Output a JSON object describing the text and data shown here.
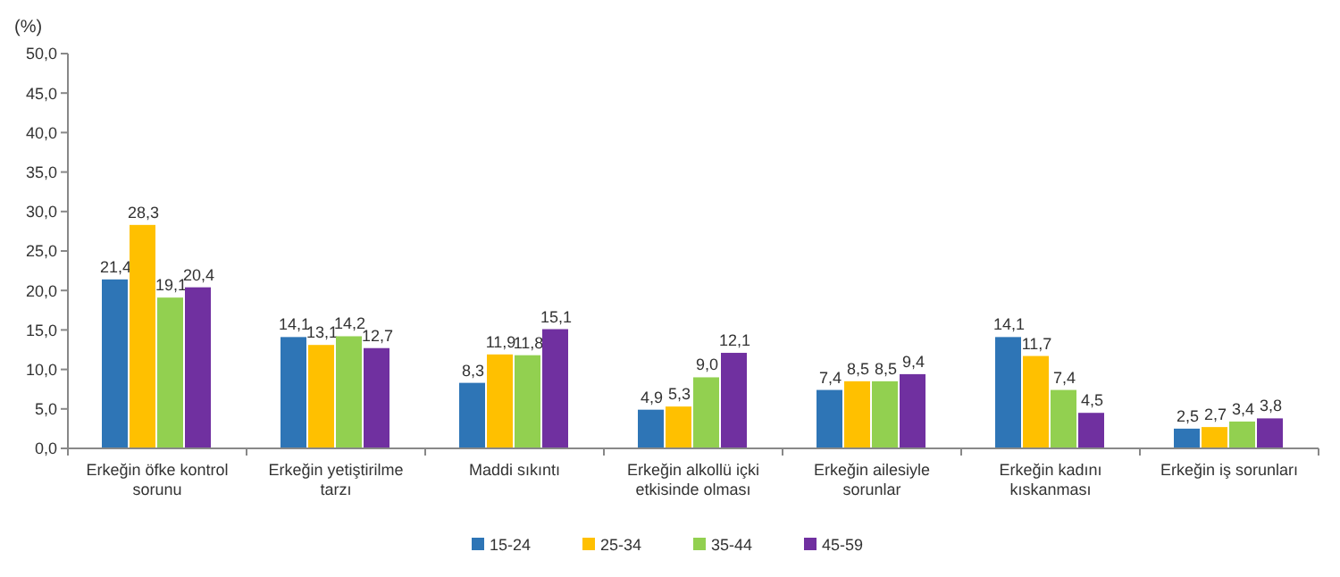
{
  "chart_data": {
    "type": "bar",
    "ylabel": "(%)",
    "categories": [
      "Erkeğin öfke kontrol sorunu",
      "Erkeğin yetiştirilme tarzı",
      "Maddi sıkıntı",
      "Erkeğin alkollü içki etkisinde olması",
      "Erkeğin ailesiyle sorunlar",
      "Erkeğin kadını kıskanması",
      "Erkeğin iş sorunları"
    ],
    "series": [
      {
        "name": "15-24",
        "color": "#2e75b6",
        "values": [
          21.4,
          14.1,
          8.3,
          4.9,
          7.4,
          14.1,
          2.5
        ],
        "value_labels": [
          "21,4",
          "14,1",
          "8,3",
          "4,9",
          "7,4",
          "14,1",
          "2,5"
        ]
      },
      {
        "name": "25-34",
        "color": "#ffc000",
        "values": [
          28.3,
          13.1,
          11.9,
          5.3,
          8.5,
          11.7,
          2.7
        ],
        "value_labels": [
          "28,3",
          "13,1",
          "11,9",
          "5,3",
          "8,5",
          "11,7",
          "2,7"
        ]
      },
      {
        "name": "35-44",
        "color": "#92d050",
        "values": [
          19.1,
          14.2,
          11.8,
          9.0,
          8.5,
          7.4,
          3.4
        ],
        "value_labels": [
          "19,1",
          "14,2",
          "11,8",
          "9,0",
          "8,5",
          "7,4",
          "3,4"
        ]
      },
      {
        "name": "45-59",
        "color": "#7030a0",
        "values": [
          20.4,
          12.7,
          15.1,
          12.1,
          9.4,
          4.5,
          3.8
        ],
        "value_labels": [
          "20,4",
          "12,7",
          "15,1",
          "12,1",
          "9,4",
          "4,5",
          "3,8"
        ]
      }
    ],
    "ylim": [
      0,
      50
    ],
    "yticks": [
      {
        "value": 0,
        "label": "0,0"
      },
      {
        "value": 5,
        "label": "5,0"
      },
      {
        "value": 10,
        "label": "10,0"
      },
      {
        "value": 15,
        "label": "15,0"
      },
      {
        "value": 20,
        "label": "20,0"
      },
      {
        "value": 25,
        "label": "25,0"
      },
      {
        "value": 30,
        "label": "30,0"
      },
      {
        "value": 35,
        "label": "35,0"
      },
      {
        "value": 40,
        "label": "40,0"
      },
      {
        "value": 45,
        "label": "45,0"
      },
      {
        "value": 50,
        "label": "50,0"
      }
    ],
    "legend": "bottom"
  }
}
